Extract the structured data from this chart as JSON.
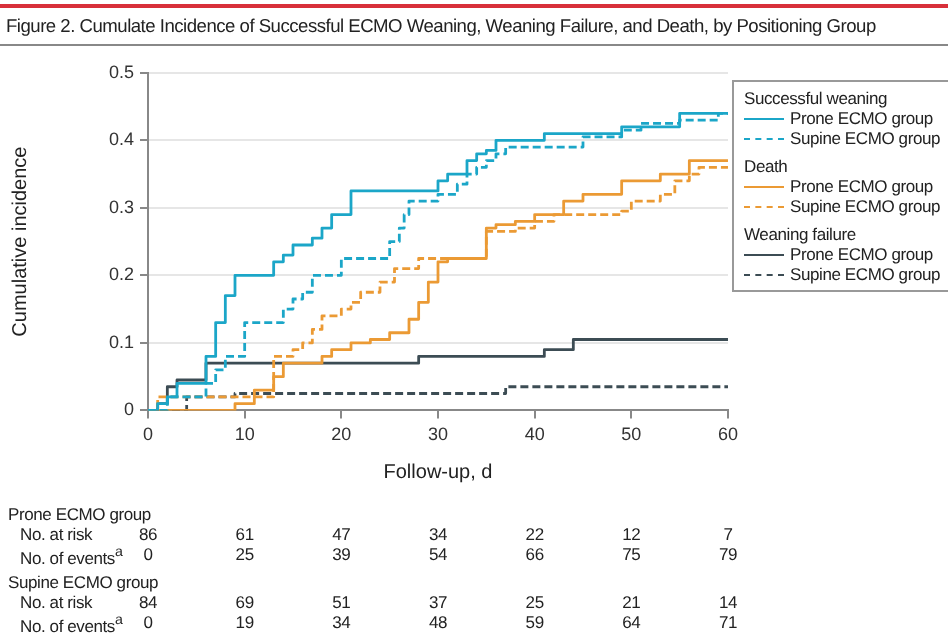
{
  "chart_data": {
    "type": "step",
    "title": "Figure 2. Cumulate Incidence of Successful ECMO Weaning, Weaning Failure, and Death, by Positioning Group",
    "xlabel": "Follow-up, d",
    "ylabel": "Cumulative incidence",
    "xlim": [
      0,
      60
    ],
    "xticks": [
      0,
      10,
      20,
      30,
      40,
      50,
      60
    ],
    "ylim": [
      0,
      0.5
    ],
    "yticks": [
      0,
      0.1,
      0.2,
      0.3,
      0.4,
      0.5
    ],
    "grid": "y",
    "legend": "right",
    "marker": "none",
    "series": [
      {
        "name": "Prone ECMO group",
        "color": "#1ba6c8",
        "line_style": "solid",
        "x": [
          0,
          1,
          2,
          3,
          6,
          7,
          8,
          9,
          13,
          14,
          15,
          17,
          18,
          19,
          21,
          30,
          31,
          33,
          34,
          35,
          36,
          41,
          49,
          55,
          60
        ],
        "values": [
          0,
          0.01,
          0.02,
          0.04,
          0.08,
          0.13,
          0.17,
          0.2,
          0.22,
          0.23,
          0.245,
          0.255,
          0.27,
          0.29,
          0.325,
          0.34,
          0.35,
          0.37,
          0.38,
          0.385,
          0.4,
          0.41,
          0.42,
          0.44,
          0.44
        ]
      },
      {
        "name": "Supine ECMO group",
        "color": "#1ba6c8",
        "line_style": "dashed",
        "x": [
          0,
          2,
          6,
          7,
          8,
          10,
          14,
          15,
          16,
          17,
          20,
          25,
          26,
          26.5,
          27,
          30,
          32,
          33,
          34,
          35,
          36,
          37,
          45,
          49,
          51,
          55,
          59,
          60
        ],
        "values": [
          0,
          0.02,
          0.04,
          0.06,
          0.08,
          0.13,
          0.15,
          0.165,
          0.175,
          0.2,
          0.225,
          0.25,
          0.27,
          0.29,
          0.31,
          0.32,
          0.335,
          0.35,
          0.36,
          0.37,
          0.38,
          0.39,
          0.405,
          0.415,
          0.425,
          0.43,
          0.44,
          0.44
        ]
      },
      {
        "name": "Prone ECMO group",
        "color": "#eb9a34",
        "line_style": "solid",
        "x": [
          0,
          9,
          11,
          13,
          14,
          18,
          19,
          21,
          23,
          25,
          27,
          28,
          29,
          30,
          31,
          35,
          36,
          38,
          40,
          43,
          45,
          49,
          53,
          56,
          60
        ],
        "values": [
          0,
          0.01,
          0.03,
          0.05,
          0.07,
          0.08,
          0.09,
          0.1,
          0.105,
          0.115,
          0.135,
          0.16,
          0.19,
          0.22,
          0.225,
          0.27,
          0.275,
          0.28,
          0.29,
          0.31,
          0.32,
          0.34,
          0.35,
          0.37,
          0.37
        ]
      },
      {
        "name": "Supine ECMO group",
        "color": "#eb9a34",
        "line_style": "dashed",
        "x": [
          0,
          1,
          13,
          15,
          16,
          17,
          18,
          20,
          21,
          22,
          24,
          25.5,
          28,
          35,
          38,
          40,
          42,
          49,
          50,
          53,
          54.5,
          56,
          57,
          60
        ],
        "values": [
          0,
          0.02,
          0.08,
          0.09,
          0.1,
          0.12,
          0.14,
          0.15,
          0.16,
          0.175,
          0.19,
          0.21,
          0.225,
          0.265,
          0.27,
          0.28,
          0.29,
          0.295,
          0.31,
          0.32,
          0.34,
          0.35,
          0.36,
          0.36
        ]
      },
      {
        "name": "Prone ECMO group",
        "color": "#3c4c54",
        "line_style": "solid",
        "x": [
          0,
          1,
          2,
          3,
          6,
          28,
          41,
          44,
          60
        ],
        "values": [
          0,
          0.01,
          0.035,
          0.045,
          0.07,
          0.08,
          0.09,
          0.105,
          0.105
        ]
      },
      {
        "name": "Supine ECMO group",
        "color": "#3c4c54",
        "line_style": "dashed",
        "x": [
          0,
          4,
          9,
          37,
          60
        ],
        "values": [
          0,
          0.02,
          0.025,
          0.035,
          0.035
        ]
      }
    ],
    "annotations": [
      "Successful weaning",
      "Death",
      "Weaning failure",
      "Prone ECMO group",
      "No. at risk",
      "86",
      "61",
      "47",
      "34",
      "22",
      "12",
      "7",
      "No. of events$^{a}$",
      "0",
      "25",
      "39",
      "54",
      "66",
      "75",
      "79",
      "Supine ECMO group",
      "No. at risk",
      "84",
      "69",
      "51",
      "37",
      "25",
      "21",
      "14",
      "No. of events$^{a}$",
      "0",
      "19",
      "34",
      "48",
      "59",
      "64",
      "71"
    ]
  }
}
